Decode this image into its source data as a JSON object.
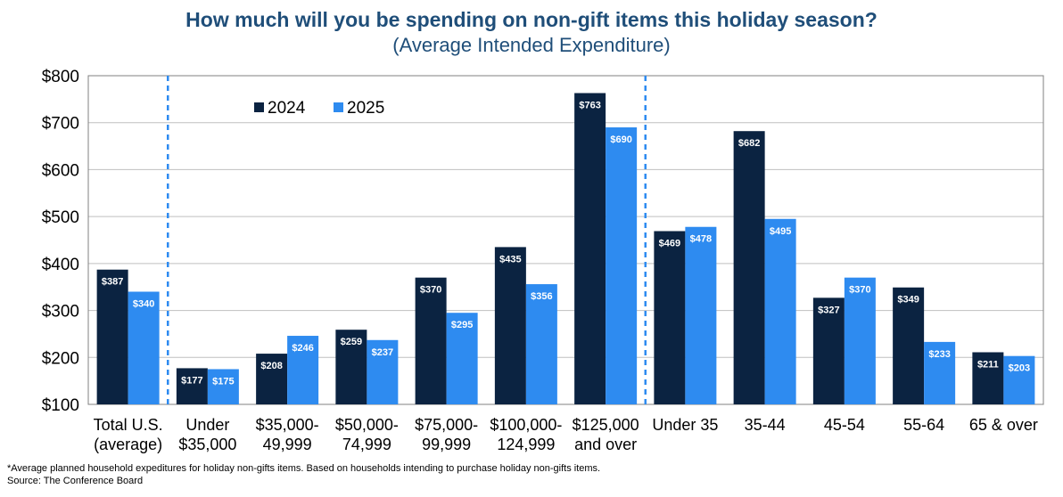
{
  "chart_data": {
    "type": "bar",
    "title": "How much will you be spending on non-gift items this holiday season?",
    "subtitle": "(Average Intended Expenditure)",
    "xlabel": "",
    "ylabel": "",
    "ylim": [
      100,
      800
    ],
    "yticks": [
      100,
      200,
      300,
      400,
      500,
      600,
      700,
      800
    ],
    "ytick_labels": [
      "$100",
      "$200",
      "$300",
      "$400",
      "$500",
      "$600",
      "$700",
      "$800"
    ],
    "grid": true,
    "legend_position": "top-left",
    "categories": [
      [
        "Total U.S.",
        "(average)"
      ],
      [
        "Under",
        "$35,000"
      ],
      [
        "$35,000-",
        "49,999"
      ],
      [
        "$50,000-",
        "74,999"
      ],
      [
        "$75,000-",
        "99,999"
      ],
      [
        "$100,000-",
        "124,999"
      ],
      [
        "$125,000",
        "and over"
      ],
      [
        "Under 35"
      ],
      [
        "35-44"
      ],
      [
        "45-54"
      ],
      [
        "55-64"
      ],
      [
        "65 & over"
      ]
    ],
    "series": [
      {
        "name": "2024",
        "color": "#0B2341",
        "values": [
          387,
          177,
          208,
          259,
          370,
          435,
          763,
          469,
          682,
          327,
          349,
          211
        ],
        "labels": [
          "$387",
          "$177",
          "$208",
          "$259",
          "$370",
          "$435",
          "$763",
          "$469",
          "$682",
          "$327",
          "$349",
          "$211"
        ]
      },
      {
        "name": "2025",
        "color": "#2E8BF0",
        "values": [
          340,
          175,
          246,
          237,
          295,
          356,
          690,
          478,
          495,
          370,
          233,
          203
        ],
        "labels": [
          "$340",
          "$175",
          "$246",
          "$237",
          "$295",
          "$356",
          "$690",
          "$478",
          "$495",
          "$370",
          "$233",
          "$203"
        ]
      }
    ],
    "separators_after_category_index": [
      0,
      6
    ],
    "separator_color": "#2E8BF0"
  },
  "footnote": "*Average planned household expeditures for holiday non-gifts items.  Based on households intending to purchase holiday non-gifts items.",
  "source": "Source: The Conference Board"
}
